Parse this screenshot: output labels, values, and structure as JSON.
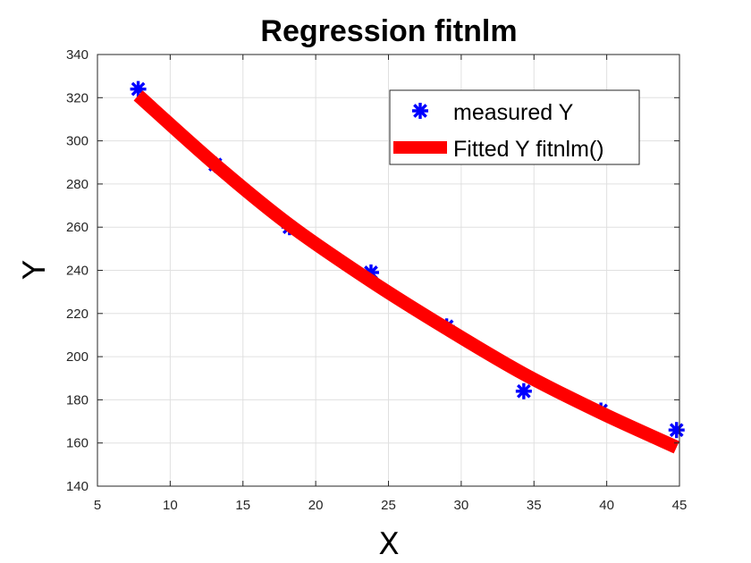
{
  "chart_data": {
    "type": "scatter",
    "title": "Regression fitnlm",
    "xlabel": "X",
    "ylabel": "Y",
    "xlim": [
      5,
      45
    ],
    "ylim": [
      140,
      340
    ],
    "xticks": [
      5,
      10,
      15,
      20,
      25,
      30,
      35,
      40,
      45
    ],
    "yticks": [
      140,
      160,
      180,
      200,
      220,
      240,
      260,
      280,
      300,
      320,
      340
    ],
    "grid": true,
    "legend_position": "top-right",
    "series": [
      {
        "name": "measured Y",
        "kind": "markers",
        "marker": "asterisk",
        "color": "#0000ff",
        "x": [
          7.8,
          13.1,
          18.2,
          23.8,
          29.0,
          34.3,
          39.6,
          44.8
        ],
        "y": [
          324,
          289,
          260,
          239,
          214,
          184,
          175,
          166
        ]
      },
      {
        "name": "Fitted Y fitnlm()",
        "kind": "line",
        "color": "#ff0000",
        "x": [
          7.8,
          13.1,
          18.2,
          23.8,
          29.0,
          34.3,
          39.6,
          44.8
        ],
        "y": [
          321,
          289,
          261,
          235,
          213,
          192,
          174,
          158
        ]
      }
    ]
  }
}
